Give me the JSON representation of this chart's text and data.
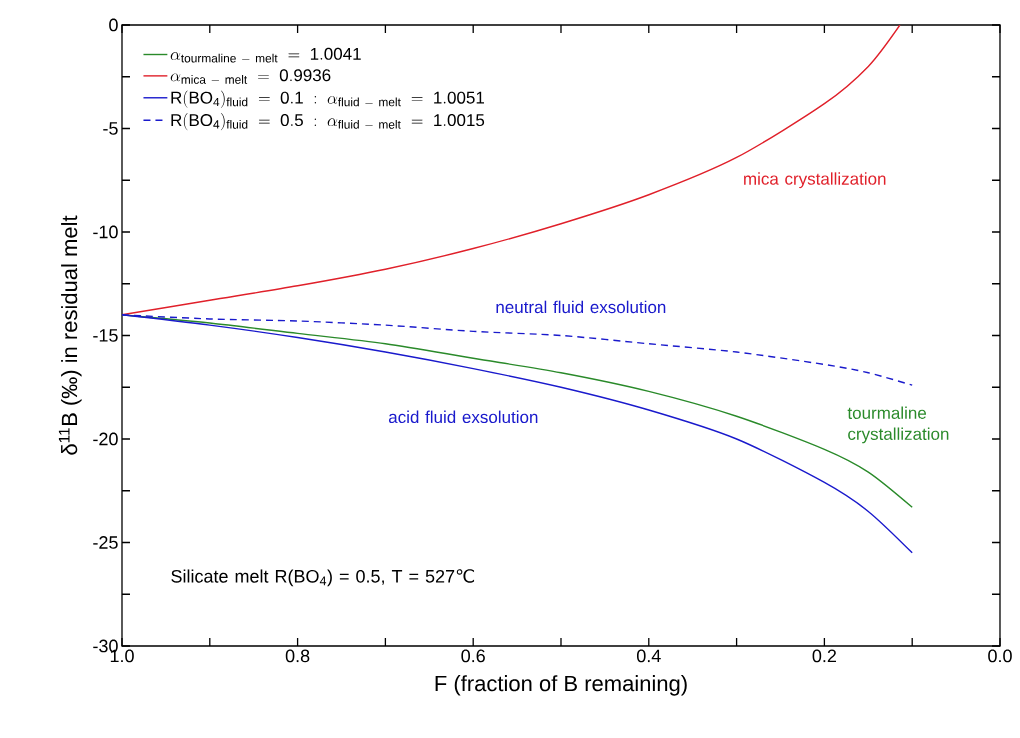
{
  "chart_data": {
    "type": "line",
    "xlabel": "F (fraction of B remaining)",
    "ylabel": "δ$^{11}$B (‰) in residual melt",
    "x": [
      1.0,
      0.9,
      0.8,
      0.7,
      0.6,
      0.5,
      0.4,
      0.3,
      0.2,
      0.15,
      0.1
    ],
    "series": [
      {
        "name": "\\mathrm{\\alpha_{tourmaline\\ -\\ melt}\\ =\\ 1.0041}",
        "color": "#2a8a2a",
        "line_style": "solid",
        "values": [
          -14.0,
          -14.4,
          -14.9,
          -15.4,
          -16.1,
          -16.8,
          -17.7,
          -18.9,
          -20.5,
          -21.6,
          -23.3
        ]
      },
      {
        "name": "\\mathrm{\\alpha_{mica\\ -\\ melt}\\ =\\ 0.9936}",
        "color": "#e0202a",
        "line_style": "solid",
        "x": [
          1.0,
          0.9,
          0.8,
          0.7,
          0.6,
          0.5,
          0.4,
          0.3,
          0.2,
          0.15,
          0.114
        ],
        "values": [
          -14.0,
          -13.3,
          -12.6,
          -11.8,
          -10.8,
          -9.6,
          -8.2,
          -6.4,
          -3.8,
          -2.0,
          0.0
        ]
      },
      {
        "name": "\\mathrm{R(BO_{4})_{fluid}\\ =\\ 0.1\\ :\\ \\alpha_{fluid\\ -\\ melt}\\ =\\ 1.0051}",
        "color": "#1a1acc",
        "line_style": "solid",
        "values": [
          -14.0,
          -14.5,
          -15.1,
          -15.8,
          -16.6,
          -17.5,
          -18.6,
          -20.0,
          -22.1,
          -23.5,
          -25.5
        ]
      },
      {
        "name": "\\mathrm{R(BO_{4})_{fluid}\\ =\\ 0.5\\ :\\ \\alpha_{fluid\\ -\\ melt}\\ =\\ 1.0015}",
        "color": "#1a1acc",
        "line_style": "dashed",
        "values": [
          -14.0,
          -14.2,
          -14.3,
          -14.5,
          -14.8,
          -15.0,
          -15.4,
          -15.8,
          -16.4,
          -16.8,
          -17.4
        ]
      }
    ],
    "annotations": [
      "mica crystallization",
      "neutral fluid exsolution",
      "acid fluid exsolution",
      "tourmaline crystallization",
      "Silicate melt R(BO$_{4}$) = 0.5, T = 527℃"
    ],
    "xlim": [
      1.0,
      0.0
    ],
    "ylim": [
      -30,
      0
    ],
    "xticks": [
      {
        "value": 1.0,
        "label": "1.0"
      },
      {
        "value": 0.9,
        "label": null
      },
      {
        "value": 0.8,
        "label": "0.8"
      },
      {
        "value": 0.7,
        "label": null
      },
      {
        "value": 0.6,
        "label": "0.6"
      },
      {
        "value": 0.5,
        "label": null
      },
      {
        "value": 0.4,
        "label": "0.4"
      },
      {
        "value": 0.3,
        "label": null
      },
      {
        "value": 0.2,
        "label": "0.2"
      },
      {
        "value": 0.1,
        "label": null
      },
      {
        "value": 0.0,
        "label": "0.0"
      }
    ],
    "yticks": [
      0,
      {
        "value": -2.5,
        "label": null
      },
      -5,
      {
        "value": -7.5,
        "label": null
      },
      -10,
      {
        "value": -12.5,
        "label": null
      },
      -15,
      {
        "value": -17.5,
        "label": null
      },
      -20,
      {
        "value": -22.5,
        "label": null
      },
      -25,
      {
        "value": -27.5,
        "label": null
      },
      -30
    ],
    "legend": "top left",
    "marker": "none"
  }
}
